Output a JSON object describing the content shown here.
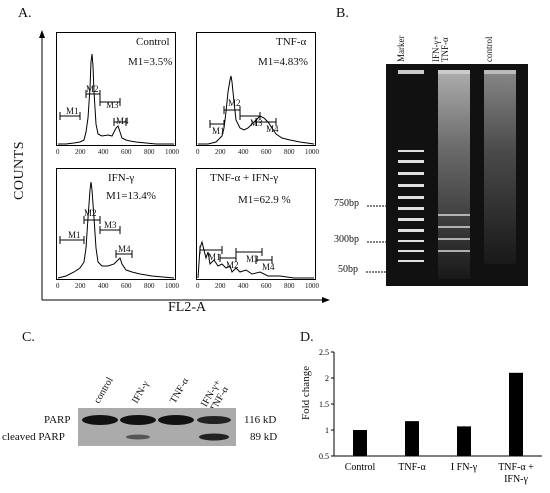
{
  "panels": {
    "a_label": "A.",
    "b_label": "B.",
    "c_label": "C.",
    "d_label": "D."
  },
  "panel_a": {
    "y_axis_label": "COUNTS",
    "x_axis_label": "FL2-A",
    "tick_labels": [
      "0",
      "200",
      "400",
      "600",
      "800",
      "1000"
    ],
    "histograms": [
      {
        "title": "Control",
        "m1_text": "M1=3.5%",
        "markers": [
          "M1",
          "M2",
          "M3",
          "M4"
        ]
      },
      {
        "title": "TNF-α",
        "m1_text": "M1=4.83%",
        "markers": [
          "M1",
          "M2",
          "M3",
          "M4"
        ]
      },
      {
        "title": "IFN-γ",
        "m1_text": "M1=13.4%",
        "markers": [
          "M1",
          "M2",
          "M3",
          "M4"
        ]
      },
      {
        "title": "TNF-α + IFN-γ",
        "m1_text": "M1=62.9 %",
        "markers": [
          "M1",
          "M2",
          "M3",
          "M4"
        ]
      }
    ]
  },
  "panel_b": {
    "lanes": [
      "Marker",
      "IFN-γ+ TNF-α",
      "control"
    ],
    "size_labels": [
      "750bp",
      "300bp",
      "50bp"
    ]
  },
  "panel_c": {
    "lanes": [
      "control",
      "IFN-γ",
      "TNF-α",
      "IFN-γ+ TNF-α"
    ],
    "row_labels": [
      "PARP",
      "cleaved PARP"
    ],
    "kd_labels": [
      "116 kD",
      "89 kD"
    ]
  },
  "chart_data": {
    "type": "bar",
    "categories": [
      "Control",
      "TNF-α",
      "I FN-γ",
      "TNF-α + IFN-γ"
    ],
    "values": [
      1.0,
      1.17,
      1.07,
      2.1
    ],
    "ylabel": "Fold change",
    "ylim": [
      0.5,
      2.5
    ],
    "yticks": [
      "0.5",
      "1",
      "1.5",
      "2",
      "2.5"
    ],
    "grid": false
  }
}
